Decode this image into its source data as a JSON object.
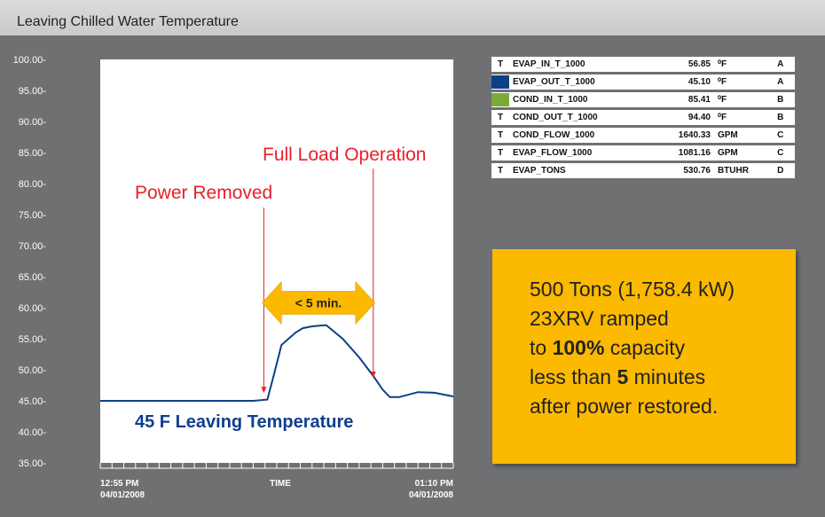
{
  "title": "Leaving Chilled Water Temperature",
  "chart_data": {
    "type": "line",
    "title": "Leaving Chilled Water Temperature",
    "xlabel": "TIME",
    "ylabel": "",
    "ylim": [
      35,
      100
    ],
    "yticks": [
      "100.00-",
      "95.00-",
      "90.00-",
      "85.00-",
      "80.00-",
      "75.00-",
      "70.00-",
      "65.00-",
      "60.00-",
      "55.00-",
      "50.00-",
      "45.00-",
      "40.00-",
      "35.00-"
    ],
    "ytick_values": [
      100,
      95,
      90,
      85,
      80,
      75,
      70,
      65,
      60,
      55,
      50,
      45,
      40,
      35
    ],
    "x_start": {
      "time": "12:55 PM",
      "date": "04/01/2008"
    },
    "x_end": {
      "time": "01:10 PM",
      "date": "04/01/2008"
    },
    "xlim_minutes": [
      0,
      15
    ],
    "minor_tick_count": 31,
    "grid": false,
    "series": [
      {
        "name": "EVAP_OUT_T_1000",
        "color": "#0d3f86",
        "x_minutes": [
          0,
          1,
          2,
          3,
          4,
          5,
          6,
          6.5,
          7.1,
          7.4,
          7.7,
          8.0,
          8.3,
          8.6,
          9.0,
          9.6,
          10.3,
          11.0,
          11.6,
          12.0,
          12.3,
          12.7,
          13.5,
          14.2,
          15.0
        ],
        "values": [
          45.0,
          45.0,
          45.0,
          45.0,
          45.0,
          45.0,
          45.0,
          45.0,
          45.2,
          49.5,
          54.0,
          55.0,
          56.0,
          56.7,
          57.0,
          57.2,
          55.0,
          52.0,
          49.0,
          46.8,
          45.6,
          45.6,
          46.4,
          46.3,
          45.7
        ]
      }
    ],
    "annotations": [
      {
        "text": "Power Removed",
        "x_minutes": 6.95,
        "value": 45.1,
        "color": "#e8202a"
      },
      {
        "text": "Full Load Operation",
        "x_minutes": 11.6,
        "value": 49.0,
        "color": "#e8202a"
      },
      {
        "text": "45 F Leaving Temperature",
        "color": "#0f3e8f"
      },
      {
        "text": "< 5 min.",
        "x_minutes_from": 7.7,
        "x_minutes_to": 11.6,
        "value": 59.5,
        "color": "#fbb900"
      }
    ]
  },
  "legend": [
    {
      "marker": "T",
      "swatch": "",
      "name": "EVAP_IN_T_1000",
      "value": "56.85",
      "unit": "⁰F",
      "group": "A"
    },
    {
      "marker": "",
      "swatch": "#0d3f86",
      "name": "EVAP_OUT_T_1000",
      "value": "45.10",
      "unit": "⁰F",
      "group": "A"
    },
    {
      "marker": "",
      "swatch": "#7daa35",
      "name": "COND_IN_T_1000",
      "value": "85.41",
      "unit": "⁰F",
      "group": "B"
    },
    {
      "marker": "T",
      "swatch": "",
      "name": "COND_OUT_T_1000",
      "value": "94.40",
      "unit": "⁰F",
      "group": "B"
    },
    {
      "marker": "T",
      "swatch": "",
      "name": "COND_FLOW_1000",
      "value": "1640.33",
      "unit": "GPM",
      "group": "C"
    },
    {
      "marker": "T",
      "swatch": "",
      "name": "EVAP_FLOW_1000",
      "value": "1081.16",
      "unit": "GPM",
      "group": "C"
    },
    {
      "marker": "T",
      "swatch": "",
      "name": "EVAP_TONS",
      "value": "530.76",
      "unit": "BTUHR",
      "group": "D"
    }
  ],
  "callout": {
    "line1": "500 Tons (1,758.4 kW)",
    "line2": "23XRV ramped",
    "line3_pre": "to ",
    "line3_bold": "100%",
    "line3_post": " capacity",
    "line4_pre": "less than ",
    "line4_bold": "5",
    "line4_post": " minutes",
    "line5": "after power restored."
  }
}
